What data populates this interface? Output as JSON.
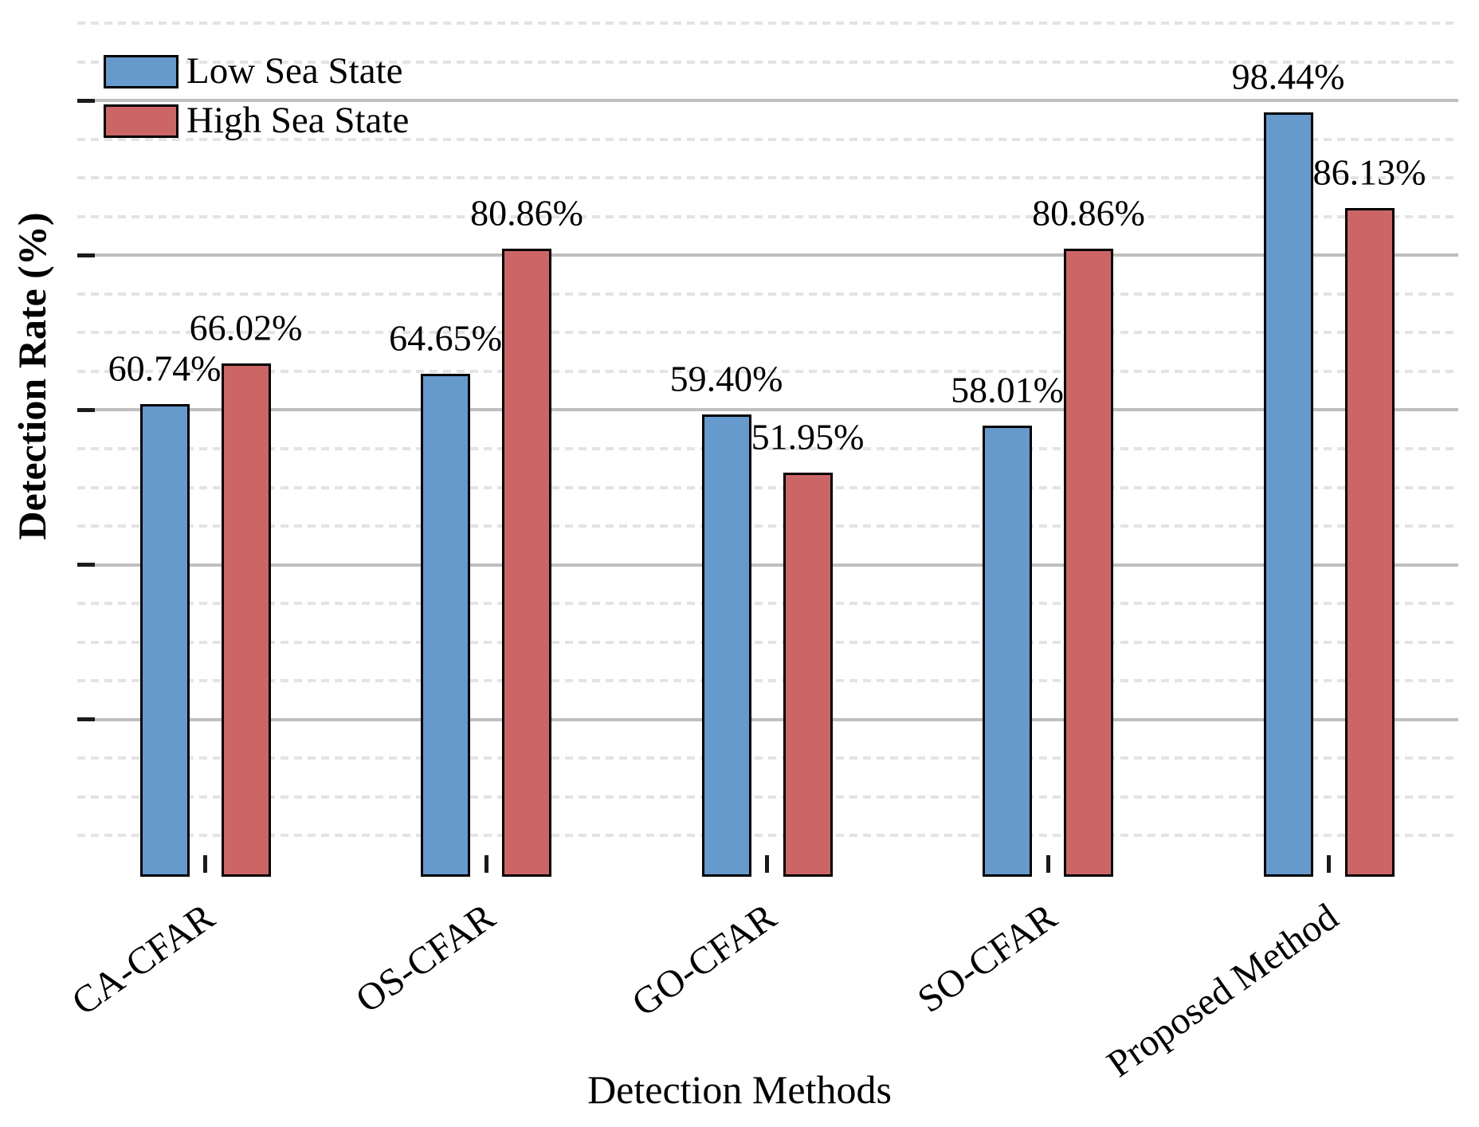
{
  "chart_data": {
    "type": "bar",
    "title": "",
    "xlabel": "Detection Methods",
    "ylabel": "Detection Rate (%)",
    "categories": [
      "CA-CFAR",
      "OS-CFAR",
      "GO-CFAR",
      "SO-CFAR",
      "Proposed Method"
    ],
    "series": [
      {
        "name": "Low Sea State",
        "color": "#6699CC",
        "values": [
          60.74,
          64.65,
          59.4,
          58.01,
          98.44
        ],
        "labels": [
          "60.74%",
          "64.65%",
          "59.40%",
          "58.01%",
          "98.44%"
        ]
      },
      {
        "name": "High Sea State",
        "color": "#CC6666",
        "values": [
          66.02,
          80.86,
          51.95,
          80.86,
          86.13
        ],
        "labels": [
          "66.02%",
          "80.86%",
          "51.95%",
          "80.86%",
          "86.13%"
        ]
      }
    ],
    "ylim": [
      0,
      110
    ],
    "y_major_step": 20,
    "y_minor_step": 5,
    "y_tick_labels_visible": false,
    "grid": "major-solid-minor-dashed",
    "legend_position": "upper-left",
    "colors": {
      "major_grid": "#bfbfbf",
      "minor_grid": "#e3e3e3",
      "spine": "#1b1b1b",
      "tick": "#1b1b1b",
      "bar_edge": "#000000",
      "text": "#000000"
    }
  }
}
